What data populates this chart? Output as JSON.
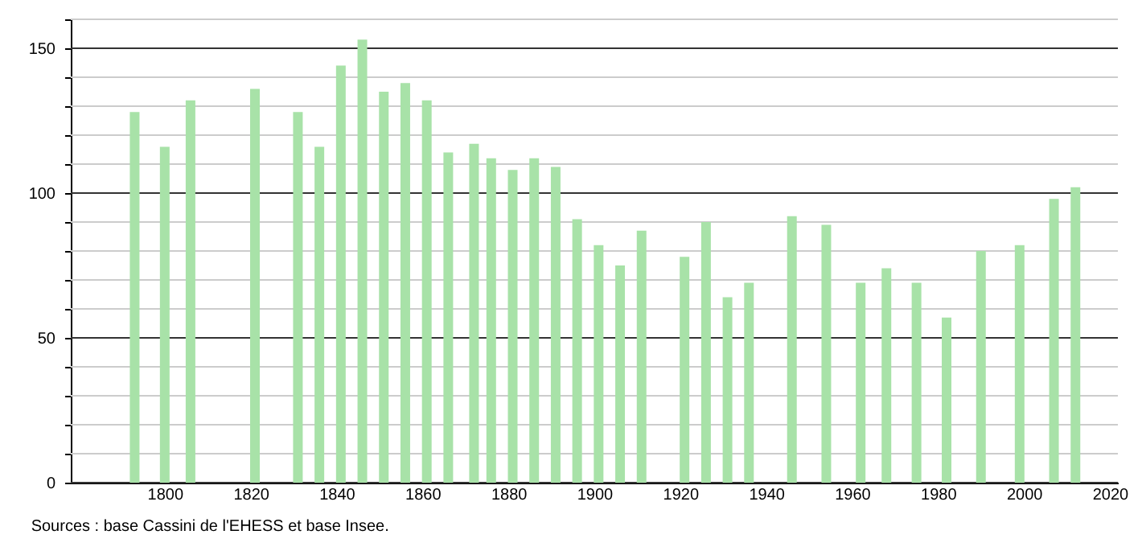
{
  "chart_data": {
    "type": "bar",
    "x": [
      1793,
      1800,
      1806,
      1821,
      1831,
      1836,
      1841,
      1846,
      1851,
      1856,
      1861,
      1866,
      1872,
      1876,
      1881,
      1886,
      1891,
      1896,
      1901,
      1906,
      1911,
      1921,
      1926,
      1931,
      1936,
      1946,
      1954,
      1962,
      1968,
      1975,
      1982,
      1990,
      1999,
      2007,
      2012
    ],
    "values": [
      128,
      116,
      132,
      136,
      128,
      116,
      144,
      153,
      135,
      138,
      132,
      114,
      117,
      112,
      108,
      112,
      109,
      91,
      82,
      75,
      87,
      78,
      90,
      64,
      69,
      92,
      89,
      69,
      74,
      69,
      57,
      80,
      82,
      98,
      102
    ],
    "color": "#a8e2a8",
    "xlim": [
      1780,
      2020
    ],
    "xticks": [
      1800,
      1820,
      1840,
      1860,
      1880,
      1900,
      1920,
      1940,
      1960,
      1980,
      2000,
      2020
    ],
    "ylim": [
      0,
      160
    ],
    "yticks": [
      0,
      {
        "value": 10,
        "label": null
      },
      {
        "value": 20,
        "label": null
      },
      {
        "value": 30,
        "label": null
      },
      {
        "value": 40,
        "label": null
      },
      50,
      {
        "value": 60,
        "label": null
      },
      {
        "value": 70,
        "label": null
      },
      {
        "value": 80,
        "label": null
      },
      {
        "value": 90,
        "label": null
      },
      100,
      {
        "value": 110,
        "label": null
      },
      {
        "value": 120,
        "label": null
      },
      {
        "value": 130,
        "label": null
      },
      {
        "value": 140,
        "label": null
      },
      150,
      {
        "value": 160,
        "label": null
      }
    ],
    "grid": "y",
    "annotations": [
      "Sources : base Cassini de l'EHESS et base Insee."
    ]
  }
}
